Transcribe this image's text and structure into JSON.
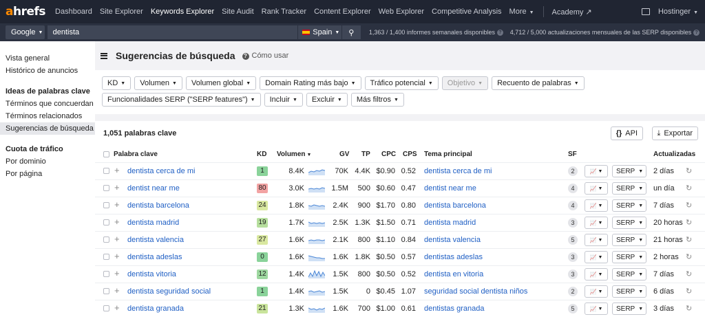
{
  "topnav": {
    "logo_a": "a",
    "logo_rest": "hrefs",
    "items": [
      "Dashboard",
      "Site Explorer",
      "Keywords Explorer",
      "Site Audit",
      "Rank Tracker",
      "Content Explorer",
      "Web Explorer",
      "Competitive Analysis",
      "More"
    ],
    "academy": "Academy",
    "account": "Hostinger"
  },
  "search": {
    "engine": "Google",
    "query": "dentista",
    "country": "Spain",
    "weekly_usage": "1,363 / 1,400 informes semanales disponibles",
    "serp_usage": "4,712 / 5,000 actualizaciones mensuales de las SERP disponibles"
  },
  "sidebar": {
    "top": [
      "Vista general",
      "Histórico de anuncios"
    ],
    "ideas_header": "Ideas de palabras clave",
    "ideas": [
      "Términos que concuerdan",
      "Términos relacionados",
      "Sugerencias de búsqueda"
    ],
    "traffic_header": "Cuota de tráfico",
    "traffic": [
      "Por dominio",
      "Por página"
    ]
  },
  "page": {
    "title": "Sugerencias de búsqueda",
    "how": "Cómo usar"
  },
  "filters": {
    "row1": [
      "KD",
      "Volumen",
      "Volumen global",
      "Domain Rating más bajo",
      "Tráfico potencial",
      "Objetivo",
      "Recuento de palabras"
    ],
    "row2": [
      "Funcionalidades SERP (\"SERP features\")",
      "Incluir",
      "Excluir",
      "Más filtros"
    ]
  },
  "table": {
    "count": "1,051 palabras clave",
    "api_label": "API",
    "export_label": "Exportar",
    "columns": {
      "keyword": "Palabra clave",
      "kd": "KD",
      "volume": "Volumen",
      "gv": "GV",
      "tp": "TP",
      "cpc": "CPC",
      "cps": "CPS",
      "topic": "Tema principal",
      "sf": "SF",
      "updated": "Actualizadas"
    },
    "serp_label": "SERP",
    "rows": [
      {
        "kw": "dentista cerca de mi",
        "kd": "1",
        "kd_color": "#8ad39a",
        "vol": "8.4K",
        "gv": "70K",
        "tp": "4.4K",
        "cpc": "$0.90",
        "cps": "0.52",
        "topic": "dentista cerca de mi",
        "sf": "2",
        "upd": "2 días"
      },
      {
        "kw": "dentist near me",
        "kd": "80",
        "kd_color": "#f2a3a3",
        "vol": "3.0K",
        "gv": "1.5M",
        "tp": "500",
        "cpc": "$0.60",
        "cps": "0.47",
        "topic": "dentist near me",
        "sf": "4",
        "upd": "un día"
      },
      {
        "kw": "dentista barcelona",
        "kd": "24",
        "kd_color": "#d9e8a0",
        "vol": "1.8K",
        "gv": "2.4K",
        "tp": "900",
        "cpc": "$1.70",
        "cps": "0.80",
        "topic": "dentista barcelona",
        "sf": "4",
        "upd": "7 días"
      },
      {
        "kw": "dentista madrid",
        "kd": "19",
        "kd_color": "#b7df9e",
        "vol": "1.7K",
        "gv": "2.5K",
        "tp": "1.3K",
        "cpc": "$1.50",
        "cps": "0.71",
        "topic": "dentista madrid",
        "sf": "3",
        "upd": "20 horas"
      },
      {
        "kw": "dentista valencia",
        "kd": "27",
        "kd_color": "#d9e8a0",
        "vol": "1.6K",
        "gv": "2.1K",
        "tp": "800",
        "cpc": "$1.10",
        "cps": "0.84",
        "topic": "dentista valencia",
        "sf": "5",
        "upd": "21 horas"
      },
      {
        "kw": "dentista adeslas",
        "kd": "0",
        "kd_color": "#8ad39a",
        "vol": "1.6K",
        "gv": "1.6K",
        "tp": "1.8K",
        "cpc": "$0.50",
        "cps": "0.57",
        "topic": "dentistas adeslas",
        "sf": "3",
        "upd": "2 horas"
      },
      {
        "kw": "dentista vitoria",
        "kd": "12",
        "kd_color": "#9ed8a0",
        "vol": "1.4K",
        "gv": "1.5K",
        "tp": "800",
        "cpc": "$0.50",
        "cps": "0.52",
        "topic": "dentista en vitoria",
        "sf": "3",
        "upd": "7 días"
      },
      {
        "kw": "dentista seguridad social",
        "kd": "1",
        "kd_color": "#8ad39a",
        "vol": "1.4K",
        "gv": "1.5K",
        "tp": "0",
        "cpc": "$0.45",
        "cps": "1.07",
        "topic": "seguridad social dentista niños",
        "sf": "2",
        "upd": "6 días"
      },
      {
        "kw": "dentista granada",
        "kd": "21",
        "kd_color": "#c9e49c",
        "vol": "1.3K",
        "gv": "1.6K",
        "tp": "700",
        "cpc": "$1.00",
        "cps": "0.61",
        "topic": "dentistas granada",
        "sf": "5",
        "upd": "3 días"
      }
    ]
  }
}
